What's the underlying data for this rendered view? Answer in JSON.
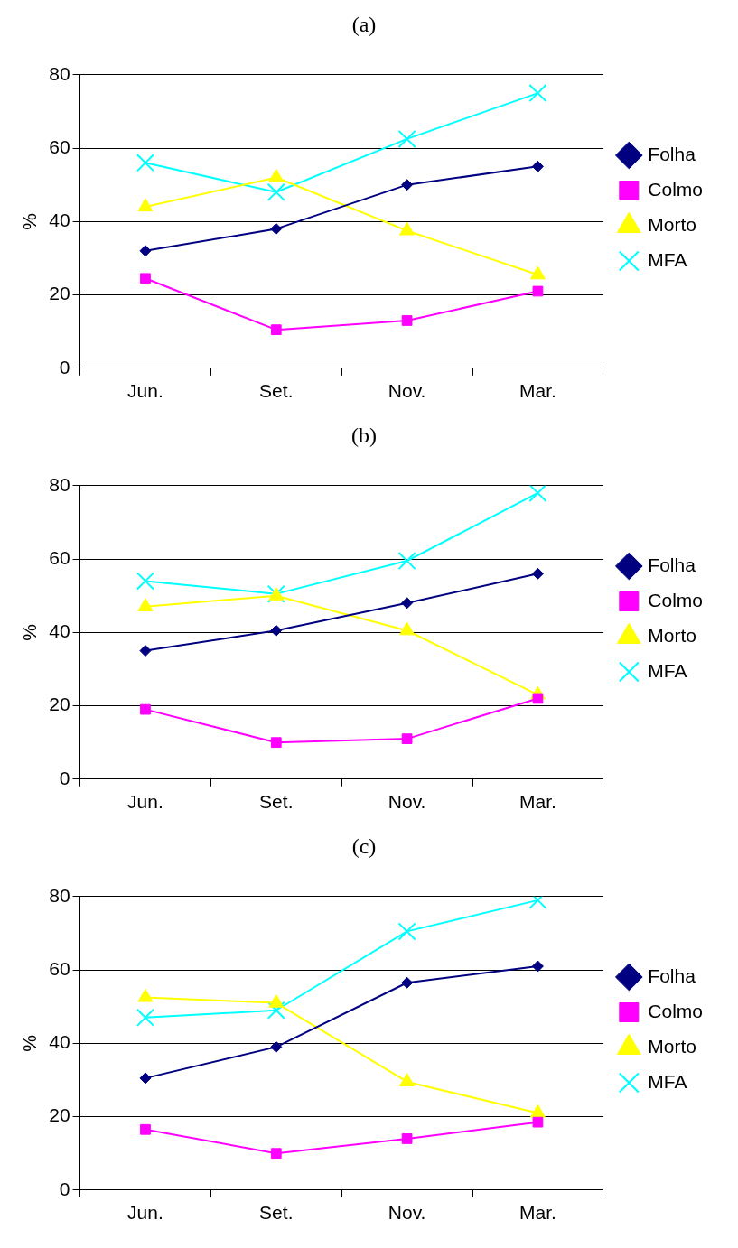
{
  "chart_data": [
    {
      "type": "line",
      "title": "(a)",
      "ylabel": "%",
      "categories": [
        "Jun.",
        "Set.",
        "Nov.",
        "Mar."
      ],
      "ylim": [
        0,
        80
      ],
      "yticks": [
        0,
        20,
        40,
        60,
        80
      ],
      "grid": "y",
      "legend": "right",
      "series": [
        {
          "name": "Folha",
          "color": "#000080",
          "marker": "diamond",
          "values": [
            32,
            38,
            50,
            55
          ]
        },
        {
          "name": "Colmo",
          "color": "#ff00ff",
          "marker": "square",
          "values": [
            24.5,
            10.5,
            13,
            21
          ]
        },
        {
          "name": "Morto",
          "color": "#ffff00",
          "marker": "triangle",
          "values": [
            44,
            52,
            37.5,
            25.5
          ]
        },
        {
          "name": "MFA",
          "color": "#00ffff",
          "marker": "cross",
          "values": [
            56,
            48,
            62.5,
            75
          ]
        }
      ]
    },
    {
      "type": "line",
      "title": "(b)",
      "ylabel": "%",
      "categories": [
        "Jun.",
        "Set.",
        "Nov.",
        "Mar."
      ],
      "ylim": [
        0,
        80
      ],
      "yticks": [
        0,
        20,
        40,
        60,
        80
      ],
      "grid": "y",
      "legend": "right",
      "series": [
        {
          "name": "Folha",
          "color": "#000080",
          "marker": "diamond",
          "values": [
            35,
            40.5,
            48,
            56
          ]
        },
        {
          "name": "Colmo",
          "color": "#ff00ff",
          "marker": "square",
          "values": [
            19,
            10,
            11,
            22
          ]
        },
        {
          "name": "Morto",
          "color": "#ffff00",
          "marker": "triangle",
          "values": [
            47,
            50,
            40.5,
            23
          ]
        },
        {
          "name": "MFA",
          "color": "#00ffff",
          "marker": "cross",
          "values": [
            54,
            50.5,
            59.5,
            78
          ]
        }
      ]
    },
    {
      "type": "line",
      "title": "(c)",
      "ylabel": "%",
      "categories": [
        "Jun.",
        "Set.",
        "Nov.",
        "Mar."
      ],
      "ylim": [
        0,
        80
      ],
      "yticks": [
        0,
        20,
        40,
        60,
        80
      ],
      "grid": "y",
      "legend": "right",
      "series": [
        {
          "name": "Folha",
          "color": "#000080",
          "marker": "diamond",
          "values": [
            30.5,
            39,
            56.5,
            61
          ]
        },
        {
          "name": "Colmo",
          "color": "#ff00ff",
          "marker": "square",
          "values": [
            16.5,
            10,
            14,
            18.5
          ]
        },
        {
          "name": "Morto",
          "color": "#ffff00",
          "marker": "triangle",
          "values": [
            52.5,
            51,
            29.5,
            21
          ]
        },
        {
          "name": "MFA",
          "color": "#00ffff",
          "marker": "cross",
          "values": [
            47,
            49,
            70.5,
            79
          ]
        }
      ]
    }
  ]
}
